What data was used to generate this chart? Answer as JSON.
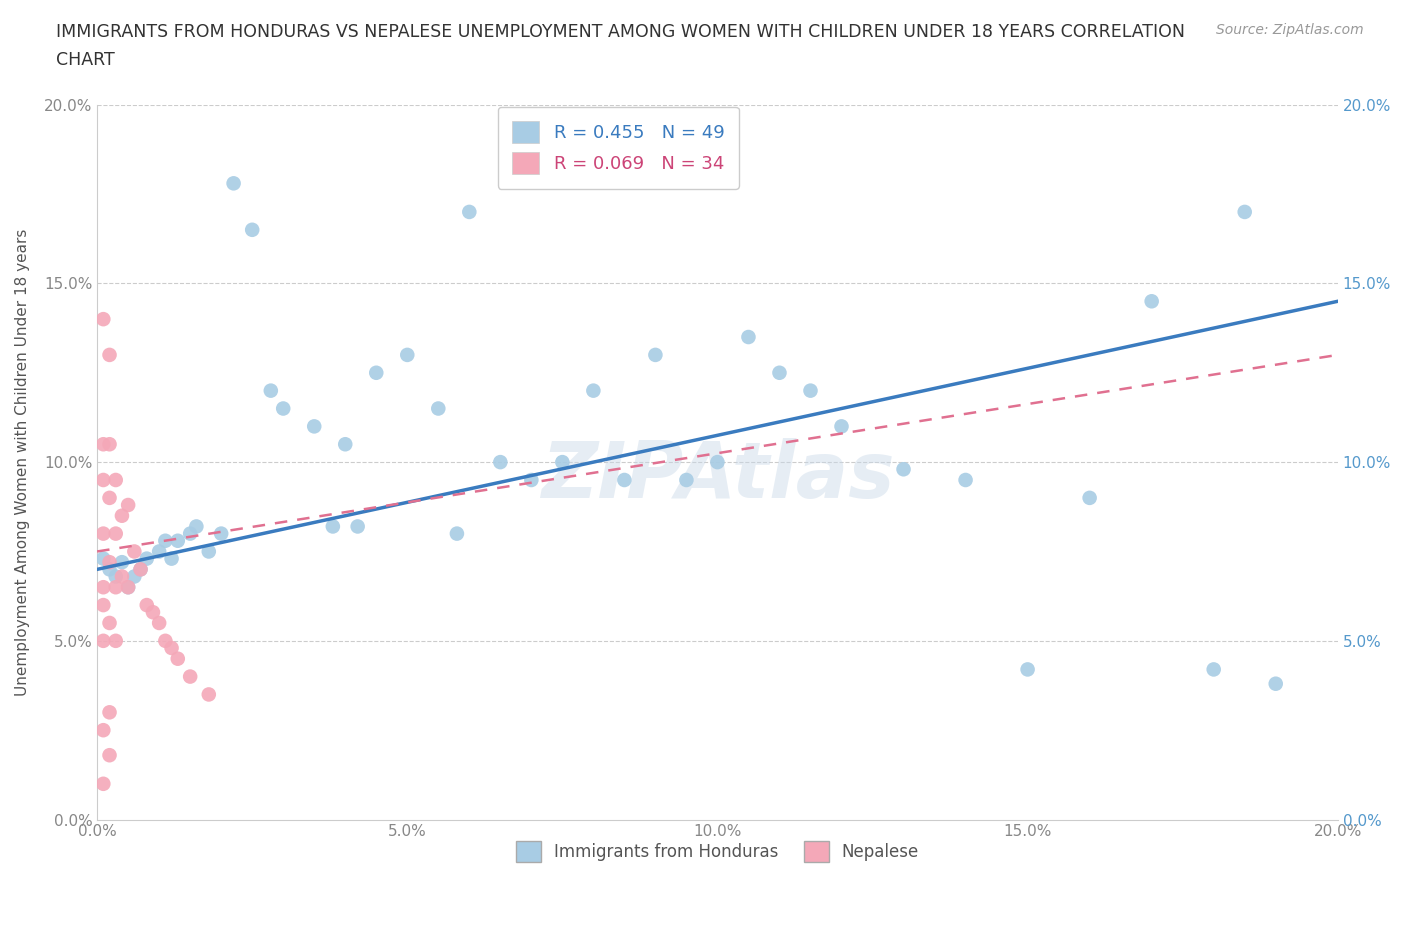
{
  "title_line1": "IMMIGRANTS FROM HONDURAS VS NEPALESE UNEMPLOYMENT AMONG WOMEN WITH CHILDREN UNDER 18 YEARS CORRELATION",
  "title_line2": "CHART",
  "source": "Source: ZipAtlas.com",
  "ylabel": "Unemployment Among Women with Children Under 18 years",
  "xlim": [
    0,
    0.2
  ],
  "ylim": [
    0,
    0.2
  ],
  "xticks": [
    0.0,
    0.05,
    0.1,
    0.15,
    0.2
  ],
  "yticks": [
    0.0,
    0.05,
    0.1,
    0.15,
    0.2
  ],
  "grid_color": "#cccccc",
  "background_color": "#ffffff",
  "watermark": "ZIPAtlas",
  "legend_r1": "R = 0.455   N = 49",
  "legend_r2": "R = 0.069   N = 34",
  "legend_label1": "Immigrants from Honduras",
  "legend_label2": "Nepalese",
  "blue_color": "#a8cce4",
  "blue_line_color": "#3a7bbf",
  "pink_color": "#f4a8b8",
  "pink_line_color": "#e07090",
  "right_tick_color": "#5599cc",
  "blue_x": [
    0.001,
    0.002,
    0.003,
    0.004,
    0.005,
    0.006,
    0.007,
    0.008,
    0.01,
    0.011,
    0.012,
    0.013,
    0.015,
    0.016,
    0.018,
    0.02,
    0.022,
    0.025,
    0.028,
    0.03,
    0.035,
    0.038,
    0.04,
    0.042,
    0.045,
    0.05,
    0.055,
    0.058,
    0.06,
    0.065,
    0.07,
    0.075,
    0.08,
    0.085,
    0.09,
    0.095,
    0.1,
    0.105,
    0.11,
    0.115,
    0.12,
    0.13,
    0.14,
    0.15,
    0.16,
    0.17,
    0.18,
    0.185,
    0.19
  ],
  "blue_y": [
    0.073,
    0.07,
    0.068,
    0.072,
    0.065,
    0.068,
    0.07,
    0.073,
    0.075,
    0.078,
    0.073,
    0.078,
    0.08,
    0.082,
    0.075,
    0.08,
    0.178,
    0.165,
    0.12,
    0.115,
    0.11,
    0.082,
    0.105,
    0.082,
    0.125,
    0.13,
    0.115,
    0.08,
    0.17,
    0.1,
    0.095,
    0.1,
    0.12,
    0.095,
    0.13,
    0.095,
    0.1,
    0.135,
    0.125,
    0.12,
    0.11,
    0.098,
    0.095,
    0.042,
    0.09,
    0.145,
    0.042,
    0.17,
    0.038
  ],
  "pink_x": [
    0.001,
    0.001,
    0.001,
    0.001,
    0.001,
    0.001,
    0.001,
    0.001,
    0.001,
    0.002,
    0.002,
    0.002,
    0.002,
    0.002,
    0.002,
    0.002,
    0.003,
    0.003,
    0.003,
    0.003,
    0.004,
    0.004,
    0.005,
    0.005,
    0.006,
    0.007,
    0.008,
    0.009,
    0.01,
    0.011,
    0.012,
    0.013,
    0.015,
    0.018
  ],
  "pink_y": [
    0.14,
    0.105,
    0.095,
    0.08,
    0.065,
    0.06,
    0.05,
    0.025,
    0.01,
    0.13,
    0.105,
    0.09,
    0.072,
    0.055,
    0.03,
    0.018,
    0.095,
    0.08,
    0.065,
    0.05,
    0.085,
    0.068,
    0.088,
    0.065,
    0.075,
    0.07,
    0.06,
    0.058,
    0.055,
    0.05,
    0.048,
    0.045,
    0.04,
    0.035
  ],
  "blue_trend_start": 0.07,
  "blue_trend_end": 0.145,
  "pink_trend_start": 0.075,
  "pink_trend_end": 0.13
}
